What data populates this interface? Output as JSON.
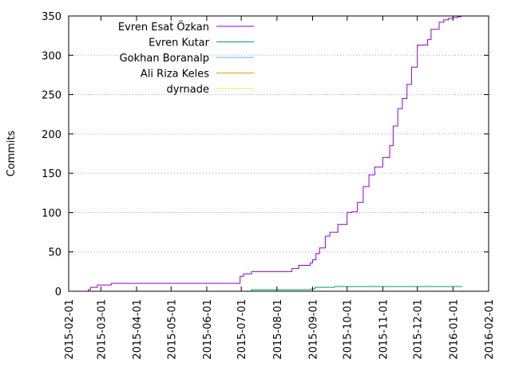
{
  "chart_data": {
    "type": "line",
    "title": "",
    "xlabel": "",
    "ylabel": "Commits",
    "ylim": [
      0,
      350
    ],
    "xlim": [
      "2015-02-01",
      "2016-02-01"
    ],
    "y_ticks": [
      0,
      50,
      100,
      150,
      200,
      250,
      300,
      350
    ],
    "x_ticks": [
      "2015-02-01",
      "2015-03-01",
      "2015-04-01",
      "2015-05-01",
      "2015-06-01",
      "2015-07-01",
      "2015-08-01",
      "2015-09-01",
      "2015-10-01",
      "2015-11-01",
      "2015-12-01",
      "2016-01-01",
      "2016-02-01"
    ],
    "grid": "horizontal dotted",
    "legend_position": "top-left",
    "series": [
      {
        "name": "Evren Esat Özkan",
        "color": "#9400d3",
        "x": [
          "2015-02-01",
          "2015-02-18",
          "2015-02-20",
          "2015-02-26",
          "2015-03-10",
          "2015-06-28",
          "2015-06-30",
          "2015-07-03",
          "2015-07-10",
          "2015-08-08",
          "2015-08-14",
          "2015-08-20",
          "2015-08-30",
          "2015-09-01",
          "2015-09-04",
          "2015-09-07",
          "2015-09-12",
          "2015-09-16",
          "2015-09-23",
          "2015-10-01",
          "2015-10-05",
          "2015-10-10",
          "2015-10-15",
          "2015-10-20",
          "2015-10-25",
          "2015-11-01",
          "2015-11-07",
          "2015-11-10",
          "2015-11-14",
          "2015-11-18",
          "2015-11-22",
          "2015-11-26",
          "2015-12-01",
          "2015-12-06",
          "2015-12-10",
          "2015-12-13",
          "2015-12-20",
          "2015-12-24",
          "2015-12-28",
          "2016-01-01",
          "2016-01-05",
          "2016-01-08"
        ],
        "y": [
          0,
          2,
          5,
          8,
          10,
          10,
          19,
          22,
          25,
          25,
          29,
          33,
          36,
          40,
          48,
          55,
          70,
          75,
          85,
          100,
          101,
          113,
          133,
          148,
          158,
          170,
          185,
          210,
          232,
          245,
          263,
          285,
          313,
          313,
          320,
          333,
          342,
          345,
          347,
          348,
          349,
          350
        ]
      },
      {
        "name": "Evren Kutar",
        "color": "#009e73",
        "x": [
          "2015-07-06",
          "2015-07-10",
          "2015-08-31",
          "2015-09-03",
          "2015-09-20",
          "2016-01-09"
        ],
        "y": [
          0,
          2,
          3,
          5,
          6,
          6
        ]
      },
      {
        "name": "Gokhan Boranalp",
        "color": "#56b4e9",
        "x": [
          "2015-09-08",
          "2016-01-09"
        ],
        "y": [
          0,
          0
        ]
      },
      {
        "name": "Ali Riza Keles",
        "color": "#e69f00",
        "x": [
          "2015-09-08",
          "2016-01-09"
        ],
        "y": [
          0,
          1
        ]
      },
      {
        "name": "dyrnade",
        "color": "#f0e442",
        "x": [
          "2015-09-08",
          "2016-01-09"
        ],
        "y": [
          0,
          0
        ]
      }
    ]
  }
}
